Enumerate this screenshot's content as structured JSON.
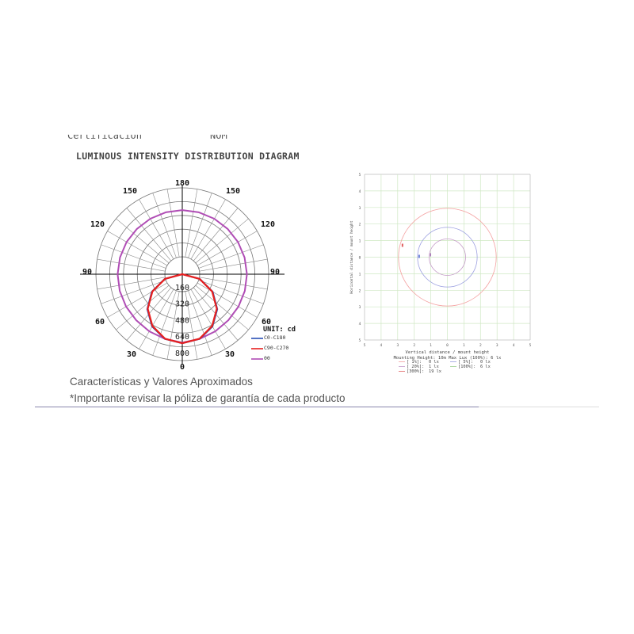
{
  "header": {
    "certification_label": "Certificación",
    "nom_label": "NOM"
  },
  "chart_data": [
    {
      "type": "polar",
      "title": "LUMINOUS INTENSITY DISTRIBUTION DIAGRAM",
      "unit_label": "UNIT: cd",
      "angle_labels": [
        "180",
        "150",
        "150",
        "120",
        "120",
        "90",
        "90",
        "60",
        "60",
        "30",
        "30",
        "0"
      ],
      "radial_ticks": [
        160,
        320,
        480,
        640,
        800
      ],
      "rmax": 800,
      "grid": true,
      "legend_position": "bottom-right",
      "angles": [
        0,
        15,
        30,
        45,
        60,
        75,
        90,
        105,
        120,
        135,
        150,
        165,
        180
      ],
      "series": [
        {
          "name": "C0-C180",
          "color": "#2a4fb5",
          "values": [
            670,
            650,
            585,
            480,
            340,
            175,
            0,
            0,
            0,
            0,
            0,
            0,
            0
          ]
        },
        {
          "name": "C90-C270",
          "color": "#e8201e",
          "values": [
            670,
            648,
            580,
            474,
            335,
            173,
            0,
            0,
            0,
            0,
            0,
            0,
            0
          ]
        },
        {
          "name": "00",
          "color": "#b04db5",
          "values": [
            665,
            650,
            640,
            632,
            630,
            628,
            628,
            626,
            624,
            622,
            622,
            622,
            622
          ]
        }
      ]
    },
    {
      "type": "isolux",
      "xlabel": "Vertical distance / mount height",
      "ylabel": "Horizontal distance / mount height",
      "xlim": [
        -5,
        5
      ],
      "ylim": [
        -5,
        5
      ],
      "tick_labels": [
        "5",
        "4",
        "3",
        "2",
        "1",
        "0",
        "1",
        "2",
        "3",
        "4",
        "5"
      ],
      "grid": true,
      "info": "Mounting Height: 10m  Max Lux (100%): 6 lx",
      "legend": [
        {
          "label": "[  1%]:",
          "value": "0 lx",
          "color": "#f4a0a0",
          "radius": 2.95
        },
        {
          "label": "[  5%]:",
          "value": "0 lx",
          "color": "#9a9ee0",
          "radius": 1.8
        },
        {
          "label": "[ 20%]:",
          "value": "1 lx",
          "color": "#c49ac8",
          "radius": 1.1
        },
        {
          "label": "[100%]:",
          "value": "6 lx",
          "color": "#9ccf8e",
          "radius": 0
        },
        {
          "label": "[300%]:",
          "value": "19 lx",
          "color": "#e06060",
          "radius": 0
        }
      ]
    }
  ],
  "footer": {
    "line1": "Características y Valores Aproximados",
    "line2": "*Importante revisar la póliza de garantía de cada producto"
  }
}
